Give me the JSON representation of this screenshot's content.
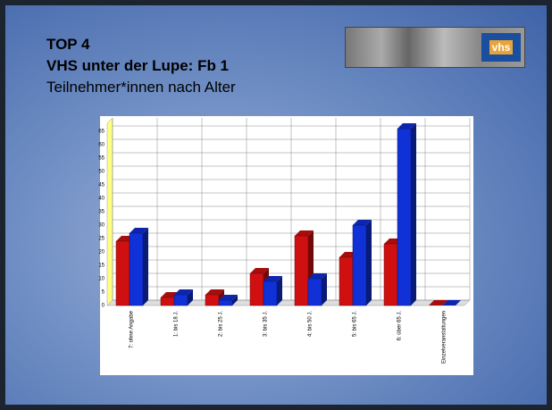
{
  "slide": {
    "title": "TOP 4",
    "subtitle": "VHS unter der Lupe: Fb 1",
    "logo": "vhs"
  },
  "chart_data": {
    "type": "bar",
    "title": "Teilnehmer*innen nach Alter",
    "categories": [
      "7: ohne Angabe",
      "1: bis 18 J.",
      "2: bis 25 J.",
      "3: bis 35 J.",
      "4: bis 50 J.",
      "5: bis 65 J.",
      "6: über 65 J.",
      "Einzelveranstaltungen"
    ],
    "series": [
      {
        "color": "#d01010",
        "values": [
          24,
          3,
          4,
          12,
          26,
          18,
          23,
          0
        ]
      },
      {
        "color": "#1030d8",
        "values": [
          27,
          4,
          2,
          9,
          10,
          30,
          66,
          0
        ]
      }
    ],
    "ylim": [
      0,
      68
    ],
    "yticks": [
      0,
      5,
      10,
      15,
      20,
      25,
      30,
      35,
      40,
      45,
      50,
      55,
      60,
      65
    ],
    "grid": true
  }
}
